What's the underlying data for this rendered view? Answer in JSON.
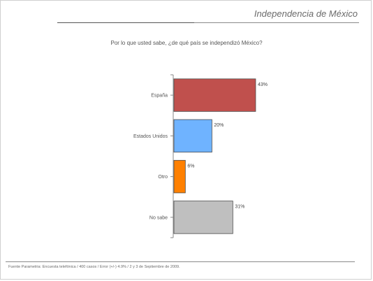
{
  "header": {
    "title": "Independencia de México"
  },
  "chart_data": {
    "type": "bar",
    "orientation": "horizontal",
    "title": "Por lo que usted sabe, ¿de qué país se independizó México?",
    "categories": [
      "España",
      "Estados Unidos",
      "Otro",
      "No sabe"
    ],
    "values": [
      43,
      20,
      6,
      31
    ],
    "value_labels": [
      "43%",
      "20%",
      "6%",
      "31%"
    ],
    "colors": [
      "#c0504d",
      "#6fb3ff",
      "#ff8000",
      "#bfbfbf"
    ],
    "xlim": [
      0,
      100
    ],
    "grid": false,
    "legend": "none"
  },
  "footer": {
    "source": "Fuente Parametria: Encuesta telefónica / 400 casos / Error (+/-) 4.9% / 2 y 3 de Septiembre  de 2009."
  }
}
